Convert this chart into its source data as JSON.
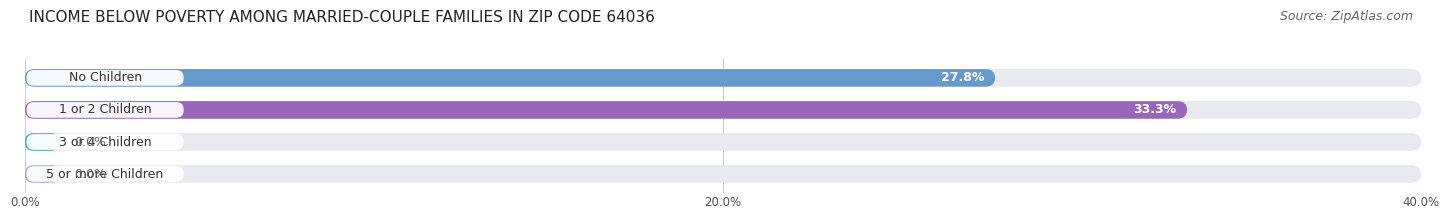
{
  "title": "INCOME BELOW POVERTY AMONG MARRIED-COUPLE FAMILIES IN ZIP CODE 64036",
  "source": "Source: ZipAtlas.com",
  "categories": [
    "No Children",
    "1 or 2 Children",
    "3 or 4 Children",
    "5 or more Children"
  ],
  "values": [
    27.8,
    33.3,
    0.0,
    0.0
  ],
  "bar_colors": [
    "#6699cc",
    "#9966bb",
    "#44bbaa",
    "#aab0dd"
  ],
  "value_labels": [
    "27.8%",
    "33.3%",
    "0.0%",
    "0.0%"
  ],
  "xlim_max": 40,
  "xticks": [
    0,
    20,
    40
  ],
  "xticklabels": [
    "0.0%",
    "20.0%",
    "40.0%"
  ],
  "background_color": "#ffffff",
  "bar_bg_color": "#e8eaf0",
  "title_fontsize": 11,
  "label_fontsize": 9,
  "value_fontsize": 9,
  "source_fontsize": 9
}
